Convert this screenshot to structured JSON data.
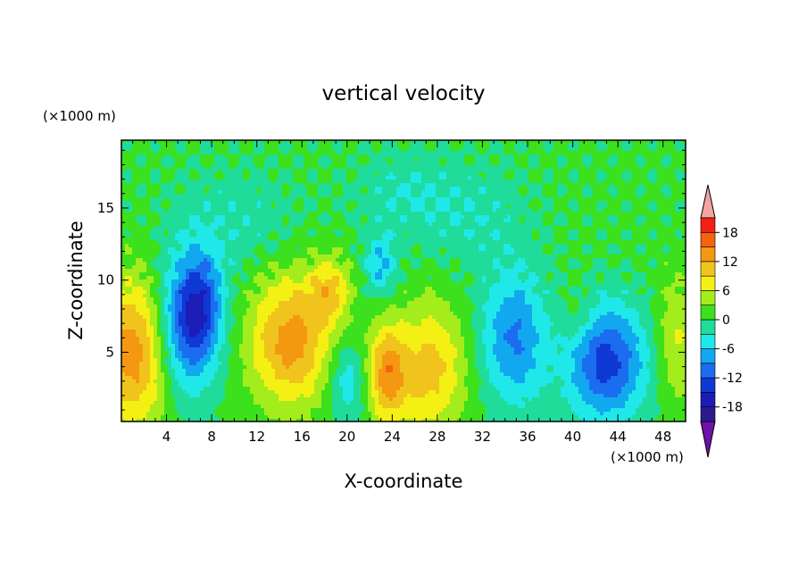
{
  "chart_data": {
    "type": "heatmap",
    "title": "vertical velocity",
    "xlabel": "X-coordinate",
    "ylabel": "Z-coordinate",
    "x_scale_note": "(×1000 m)",
    "y_scale_note": "(×1000 m)",
    "xlim": [
      0,
      50
    ],
    "ylim": [
      0.2,
      19.7
    ],
    "x_ticks": [
      4,
      8,
      12,
      16,
      20,
      24,
      28,
      32,
      36,
      40,
      44,
      48
    ],
    "y_ticks": [
      5,
      10,
      15
    ],
    "x_minor_tick_step": 1,
    "y_minor_tick_step": 1,
    "colorbar": {
      "levels": [
        -21,
        -18,
        -15,
        -12,
        -9,
        -6,
        -3,
        0,
        3,
        6,
        9,
        12,
        15,
        18,
        21
      ],
      "labels": [
        -18,
        -12,
        -6,
        0,
        6,
        12,
        18
      ],
      "colors": [
        "#6f10a8",
        "#2b1a8c",
        "#1c1cb6",
        "#1038d4",
        "#1c6cf0",
        "#12a8f0",
        "#20e8e8",
        "#20dc9a",
        "#3ce01c",
        "#a4ec1c",
        "#f4f014",
        "#f0c41c",
        "#f49812",
        "#f46410",
        "#f42016",
        "#f4a2a2"
      ],
      "extend": "both"
    },
    "features": [
      {
        "x": 1.2,
        "z": 5.0,
        "w": 14,
        "sx": 2.4,
        "sz": 3.6
      },
      {
        "x": 5.5,
        "z": 6.5,
        "w": -12,
        "sx": 2.0,
        "sz": 3.2
      },
      {
        "x": 7.0,
        "z": 8.5,
        "w": -10,
        "sx": 1.4,
        "sz": 2.5
      },
      {
        "x": 15.0,
        "z": 5.8,
        "w": 13,
        "sx": 2.6,
        "sz": 3.2
      },
      {
        "x": 18.5,
        "z": 9.3,
        "w": 8,
        "sx": 1.3,
        "sz": 1.6
      },
      {
        "x": 20.0,
        "z": 3.0,
        "w": -6,
        "sx": 1.2,
        "sz": 2.0
      },
      {
        "x": 23.5,
        "z": 3.5,
        "w": 12,
        "sx": 1.2,
        "sz": 2.4
      },
      {
        "x": 27.3,
        "z": 3.8,
        "w": 10,
        "sx": 2.2,
        "sz": 3.2
      },
      {
        "x": 23.0,
        "z": 11.0,
        "w": -7,
        "sx": 1.0,
        "sz": 1.5
      },
      {
        "x": 34.8,
        "z": 6.0,
        "w": -10,
        "sx": 2.0,
        "sz": 3.2
      },
      {
        "x": 43.0,
        "z": 4.3,
        "w": -14,
        "sx": 2.4,
        "sz": 2.8
      },
      {
        "x": 49.3,
        "z": 6.0,
        "w": 6,
        "sx": 1.3,
        "sz": 3.0
      },
      {
        "x": 40.5,
        "z": 7.5,
        "w": 3,
        "sx": 1.2,
        "sz": 1.5
      },
      {
        "x": 10.0,
        "z": 14.0,
        "w": -3,
        "sx": 4.0,
        "sz": 2.5
      },
      {
        "x": 31.0,
        "z": 14.5,
        "w": -3,
        "sx": 3.5,
        "sz": 2.5
      },
      {
        "x": 25.0,
        "z": 16.0,
        "w": -3,
        "sx": 3.0,
        "sz": 2.0
      }
    ],
    "background_value": 0.5
  }
}
